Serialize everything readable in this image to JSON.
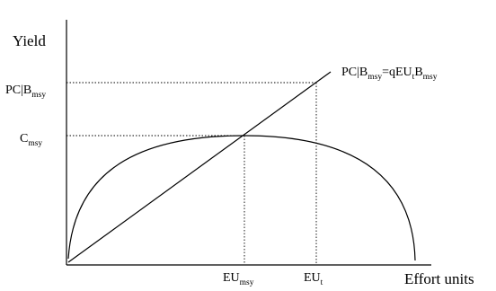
{
  "axes": {
    "y_title": "Yield",
    "x_title": "Effort units"
  },
  "y_ticks": {
    "pc_bmsy": {
      "main": "PC|B",
      "sub": "msy"
    },
    "c_msy": {
      "main": "C",
      "sub": "msy"
    }
  },
  "x_ticks": {
    "eu_msy": {
      "main": "EU",
      "sub": "msy"
    },
    "eu_t": {
      "main": "EU",
      "sub": "t"
    }
  },
  "line_label": {
    "p1": "PC|B",
    "s1": "msy",
    "p2": "=qEU",
    "s2": "t",
    "p3": "B",
    "s3": "msy"
  },
  "colors": {
    "ink": "#000000"
  }
}
